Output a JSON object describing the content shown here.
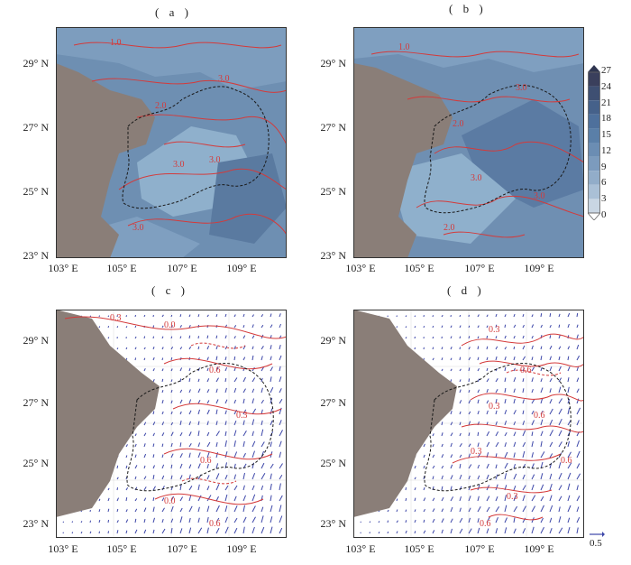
{
  "panels": [
    {
      "label": "( a )"
    },
    {
      "label": "( b )"
    },
    {
      "label": "( c )"
    },
    {
      "label": "( d )"
    }
  ],
  "yticks_top": [
    "29° N",
    "27° N",
    "25° N",
    "23° N"
  ],
  "yticks_bottom": [
    "29° N",
    "27° N",
    "25° N",
    "23° N"
  ],
  "xticks": [
    "103° E",
    "105° E",
    "107° E",
    "109° E"
  ],
  "contour_labels": {
    "a": [
      "1.0",
      "3.0",
      "2.0",
      "3.0",
      "3.0",
      "3.0",
      "2.0",
      "3.0",
      "1.0"
    ],
    "b": [
      "1.0",
      "3.0",
      "2.0",
      "3.0",
      "3.0",
      "2.0",
      "1.0",
      "3.0"
    ],
    "c": [
      "0.3",
      "0.0",
      "0.6",
      "0.3",
      "0.6",
      "0.0",
      "0.6"
    ],
    "d": [
      "0.3",
      "0.6",
      "0.3",
      "0.6",
      "0.3",
      "0.6",
      "0.3",
      "0.6"
    ]
  },
  "colorbar": {
    "ticks": [
      "27",
      "24",
      "21",
      "18",
      "15",
      "12",
      "9",
      "6",
      "3",
      "0"
    ],
    "colors": [
      "#3a3f5c",
      "#3e4f72",
      "#45618a",
      "#4e709c",
      "#5a7fa8",
      "#6b8db3",
      "#7c9bbd",
      "#92adc9",
      "#aac0d6",
      "#c9d6e3"
    ]
  },
  "reference_vector": {
    "label": "0.5"
  },
  "colors": {
    "terrain_gray": "#8a7e78",
    "contour": "#d43a3a",
    "vector": "#3b45a8",
    "border": "#222222"
  }
}
